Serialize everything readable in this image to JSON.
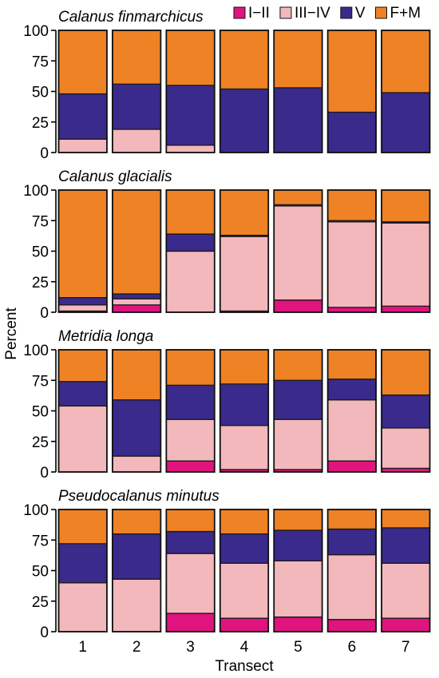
{
  "chart_data": {
    "type": "bar",
    "stacked": true,
    "xlabel": "Transect",
    "ylabel": "Percent",
    "categories": [
      "1",
      "2",
      "3",
      "4",
      "5",
      "6",
      "7"
    ],
    "ylim": [
      0,
      100
    ],
    "yticks": [
      "0",
      "25",
      "50",
      "75",
      "100"
    ],
    "legend": {
      "placement": "top-right",
      "entries": [
        {
          "name": "I−II",
          "color": "#e0147f"
        },
        {
          "name": "III−IV",
          "color": "#f3b8bb"
        },
        {
          "name": "V",
          "color": "#3a2a8c"
        },
        {
          "name": "F+M",
          "color": "#ee8224"
        }
      ]
    },
    "panels": [
      {
        "title": "Calanus finmarchicus",
        "series": [
          {
            "name": "I−II",
            "values": [
              0,
              0,
              0,
              0,
              0,
              0,
              0
            ]
          },
          {
            "name": "III−IV",
            "values": [
              11,
              19,
              6,
              0,
              0,
              0,
              0
            ]
          },
          {
            "name": "V",
            "values": [
              37,
              37,
              49,
              52,
              53,
              33,
              49
            ]
          },
          {
            "name": "F+M",
            "values": [
              52,
              44,
              45,
              48,
              47,
              67,
              51
            ]
          }
        ]
      },
      {
        "title": "Calanus glacialis",
        "series": [
          {
            "name": "I−II",
            "values": [
              1,
              6,
              0,
              1,
              10,
              4,
              5
            ]
          },
          {
            "name": "III−IV",
            "values": [
              5,
              5,
              50,
              61,
              77,
              70,
              68
            ]
          },
          {
            "name": "V",
            "values": [
              6,
              4,
              14,
              1,
              1,
              1,
              1
            ]
          },
          {
            "name": "F+M",
            "values": [
              88,
              85,
              36,
              37,
              12,
              25,
              26
            ]
          }
        ]
      },
      {
        "title": "Metridia longa",
        "series": [
          {
            "name": "I−II",
            "values": [
              0,
              0,
              9,
              2,
              2,
              9,
              3
            ]
          },
          {
            "name": "III−IV",
            "values": [
              54,
              13,
              34,
              36,
              41,
              50,
              33
            ]
          },
          {
            "name": "V",
            "values": [
              20,
              46,
              28,
              34,
              32,
              17,
              27
            ]
          },
          {
            "name": "F+M",
            "values": [
              26,
              41,
              29,
              28,
              25,
              24,
              37
            ]
          }
        ]
      },
      {
        "title": "Pseudocalanus minutus",
        "series": [
          {
            "name": "I−II",
            "values": [
              0,
              0,
              15,
              11,
              12,
              10,
              11
            ]
          },
          {
            "name": "III−IV",
            "values": [
              40,
              43,
              49,
              45,
              46,
              53,
              45
            ]
          },
          {
            "name": "V",
            "values": [
              32,
              37,
              18,
              24,
              25,
              21,
              29
            ]
          },
          {
            "name": "F+M",
            "values": [
              28,
              20,
              18,
              20,
              17,
              16,
              15
            ]
          }
        ]
      }
    ]
  }
}
